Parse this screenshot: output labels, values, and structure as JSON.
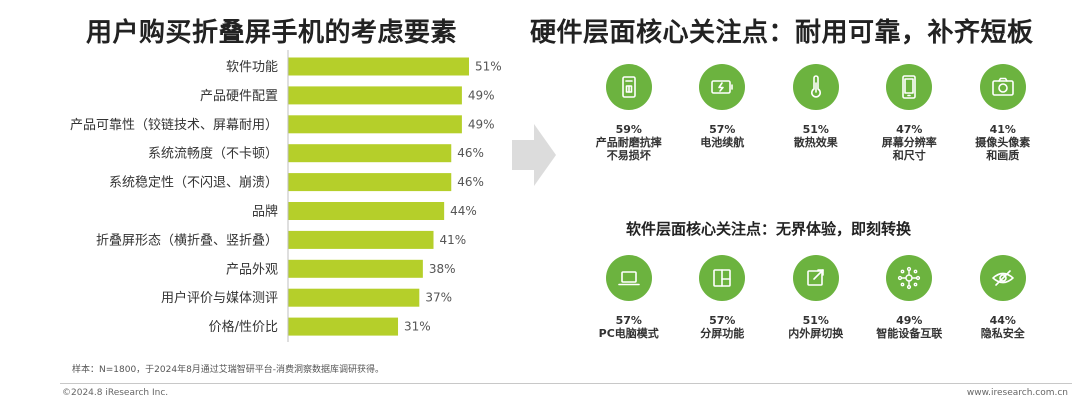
{
  "left_title": "用户购买折叠屏手机的考虑要素",
  "right_title": "硬件层面核心关注点：耐用可靠，补齐短板",
  "chart_data": {
    "type": "bar",
    "orientation": "horizontal",
    "categories": [
      "软件功能",
      "产品硬件配置",
      "产品可靠性（铰链技术、屏幕耐用）",
      "系统流畅度（不卡顿）",
      "系统稳定性（不闪退、崩溃）",
      "品牌",
      "折叠屏形态（横折叠、竖折叠）",
      "产品外观",
      "用户评价与媒体测评",
      "价格/性价比"
    ],
    "values": [
      51,
      49,
      49,
      46,
      46,
      44,
      41,
      38,
      37,
      31
    ],
    "value_labels": [
      "51%",
      "49%",
      "49%",
      "46%",
      "46%",
      "44%",
      "41%",
      "38%",
      "37%",
      "31%"
    ],
    "unit": "%",
    "title": "用户购买折叠屏手机的考虑要素",
    "xlabel": "",
    "ylabel": "",
    "xlim": [
      0,
      51
    ],
    "grid": false,
    "legend": "none",
    "bar_color": "#b5cf2a"
  },
  "hardware": [
    {
      "icon": "tablet-durability-icon",
      "percent": "59%",
      "label": "产品耐磨抗摔\n不易损坏"
    },
    {
      "icon": "battery-icon",
      "percent": "57%",
      "label": "电池续航"
    },
    {
      "icon": "thermometer-icon",
      "percent": "51%",
      "label": "散热效果"
    },
    {
      "icon": "phone-screen-icon",
      "percent": "47%",
      "label": "屏幕分辨率\n和尺寸"
    },
    {
      "icon": "camera-icon",
      "percent": "41%",
      "label": "摄像头像素\n和画质"
    }
  ],
  "software_title": "软件层面核心关注点：无界体验，即刻转换",
  "software": [
    {
      "icon": "laptop-icon",
      "percent": "57%",
      "label": "PC电脑模式"
    },
    {
      "icon": "split-screen-icon",
      "percent": "57%",
      "label": "分屏功能"
    },
    {
      "icon": "screen-switch-icon",
      "percent": "51%",
      "label": "内外屏切换"
    },
    {
      "icon": "connected-devices-icon",
      "percent": "49%",
      "label": "智能设备互联"
    },
    {
      "icon": "privacy-eye-icon",
      "percent": "44%",
      "label": "隐私安全"
    }
  ],
  "note": "样本：N=1800，于2024年8月通过艾瑞智研平台-消费洞察数据库调研获得。",
  "copyright": "©2024.8 iResearch Inc.",
  "website": "www.iresearch.com.cn",
  "colors": {
    "accent_green": "#6cb33f",
    "bar_green": "#b5cf2a",
    "arrow_gray": "#dcdcdc"
  }
}
